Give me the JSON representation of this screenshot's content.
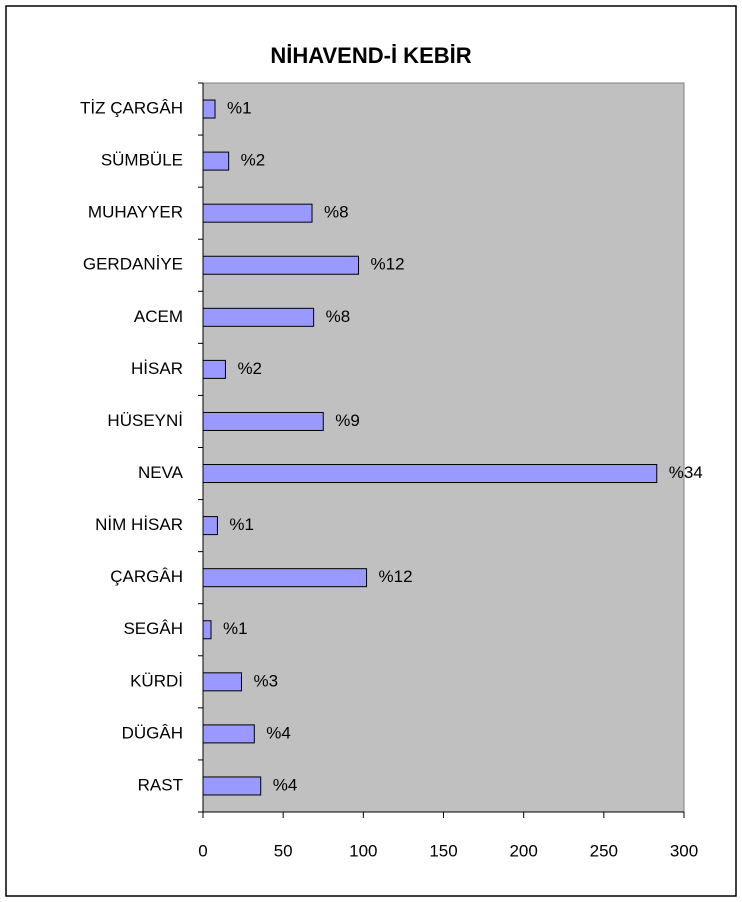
{
  "chart_data": {
    "type": "bar",
    "orientation": "horizontal",
    "title": "NİHAVEND-İ KEBİR",
    "categories": [
      "TİZ ÇARGÂH",
      "SÜMBÜLE",
      "MUHAYYER",
      "GERDANİYE",
      "ACEM",
      "HİSAR",
      "HÜSEYNİ",
      "NEVA",
      "NİM HİSAR",
      "ÇARGÂH",
      "SEGÂH",
      "KÜRDİ",
      "DÜGÂH",
      "RAST"
    ],
    "values": [
      7.5,
      16,
      68,
      97,
      69,
      14,
      75,
      283,
      9,
      102,
      5,
      24,
      32,
      36
    ],
    "value_labels": [
      "%1",
      "%2",
      "%8",
      "%12",
      "%8",
      "%2",
      "%9",
      "%34",
      "%1",
      "%12",
      "%1",
      "%3",
      "%4",
      "%4"
    ],
    "color": "#9999ff",
    "plot_background": "#c0c0c0",
    "xlim": [
      0,
      300
    ],
    "xticks": [
      0,
      50,
      100,
      150,
      200,
      250,
      300
    ],
    "grid": false
  }
}
